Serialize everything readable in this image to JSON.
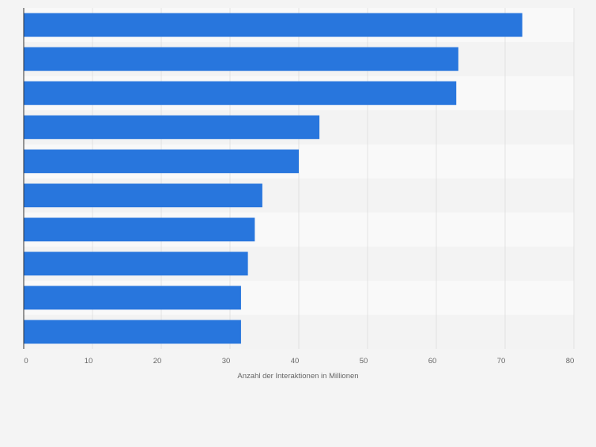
{
  "chart_data": {
    "type": "bar",
    "orientation": "horizontal",
    "categories": [
      "",
      "",
      "",
      "",
      "",
      "",
      "",
      "",
      "",
      ""
    ],
    "values": [
      72.5,
      63.2,
      62.9,
      43.0,
      40.0,
      34.7,
      33.6,
      32.6,
      31.6,
      31.6
    ],
    "xlabel": "Anzahl der Interaktionen in Millionen",
    "xlim": [
      0,
      80
    ],
    "xticks": [
      0,
      10,
      20,
      30,
      40,
      50,
      60,
      70,
      80
    ],
    "grid": true,
    "legend": "none"
  },
  "colors": {
    "bar": "#2876dd",
    "page_background": "#f4f4f4",
    "band_light": "#f9f9f9",
    "band_dark": "#f3f3f3",
    "grid": "#e2e2e2",
    "axis": "#333333",
    "tick_text": "#666666"
  }
}
